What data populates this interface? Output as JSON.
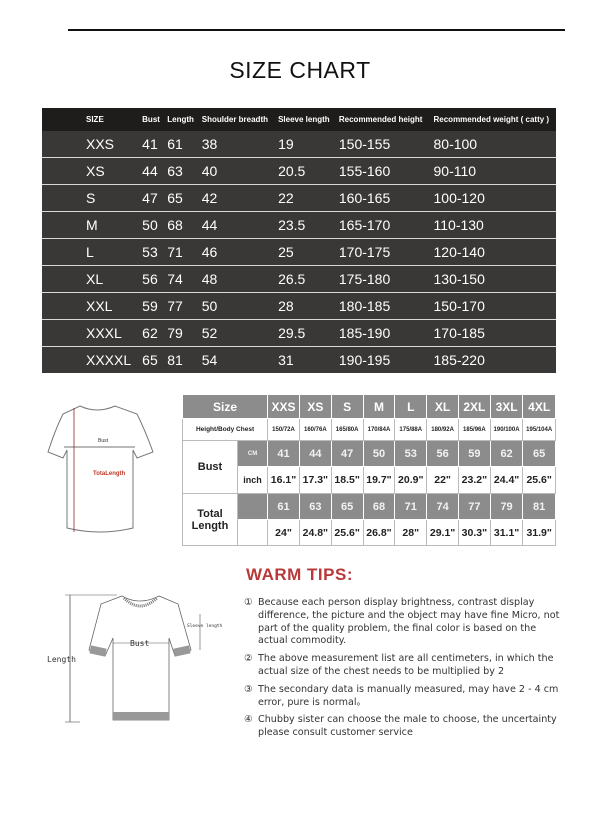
{
  "title": "SIZE CHART",
  "table1": {
    "headers": [
      "SIZE",
      "Bust",
      "Length",
      "Shoulder breadth",
      "Sleeve length",
      "Recommended height",
      "Recommended weight ( catty )"
    ],
    "rows": [
      [
        "XXS",
        "41",
        "61",
        "38",
        "19",
        "150-155",
        "80-100"
      ],
      [
        "XS",
        "44",
        "63",
        "40",
        "20.5",
        "155-160",
        "90-110"
      ],
      [
        "S",
        "47",
        "65",
        "42",
        "22",
        "160-165",
        "100-120"
      ],
      [
        "M",
        "50",
        "68",
        "44",
        "23.5",
        "165-170",
        "110-130"
      ],
      [
        "L",
        "53",
        "71",
        "46",
        "25",
        "170-175",
        "120-140"
      ],
      [
        "XL",
        "56",
        "74",
        "48",
        "26.5",
        "175-180",
        "130-150"
      ],
      [
        "XXL",
        "59",
        "77",
        "50",
        "28",
        "180-185",
        "150-170"
      ],
      [
        "XXXL",
        "62",
        "79",
        "52",
        "29.5",
        "185-190",
        "170-185"
      ],
      [
        "XXXXL",
        "65",
        "81",
        "54",
        "31",
        "190-195",
        "185-220"
      ]
    ]
  },
  "table2": {
    "size_label": "Size",
    "sizes": [
      "XXS",
      "XS",
      "S",
      "M",
      "L",
      "XL",
      "2XL",
      "3XL",
      "4XL"
    ],
    "height_label": "Height/Body Chest",
    "heights": [
      "150/72A",
      "160/76A",
      "165/80A",
      "170/84A",
      "175/88A",
      "180/92A",
      "185/96A",
      "190/100A",
      "195/104A"
    ],
    "height_unit": "CM",
    "bust_label": "Bust",
    "cm_label": "CM",
    "inch_label": "inch",
    "bust_cm": [
      "41",
      "44",
      "47",
      "50",
      "53",
      "56",
      "59",
      "62",
      "65"
    ],
    "bust_inch": [
      "16.1\"",
      "17.3\"",
      "18.5\"",
      "19.7\"",
      "20.9\"",
      "22\"",
      "23.2\"",
      "24.4\"",
      "25.6\""
    ],
    "length_label": "Total Length",
    "length_cm": [
      "61",
      "63",
      "65",
      "68",
      "71",
      "74",
      "77",
      "79",
      "81"
    ],
    "length_inch": [
      "24\"",
      "24.8\"",
      "25.6\"",
      "26.8\"",
      "28\"",
      "29.1\"",
      "30.3\"",
      "31.1\"",
      "31.9\""
    ]
  },
  "diagram1": {
    "bust": "Bust",
    "length": "TotaLength"
  },
  "diagram2": {
    "length": "Length",
    "bust": "Bust",
    "sleeve": "Sleeve length"
  },
  "warm_tips": {
    "heading": "WARM TIPS:",
    "items": [
      {
        "num": "①",
        "text": "Because each person display brightness, contrast display difference, the picture and the object may have fine Micro, not part of the quality problem, the final color is based on the actual commodity."
      },
      {
        "num": "②",
        "text": "The above measurement list are all centimeters, in which the actual size of the chest needs to be multiplied by 2"
      },
      {
        "num": "③",
        "text": "The secondary data is manually measured, may have 2 - 4 cm error, pure is normal。"
      },
      {
        "num": "④",
        "text": "Chubby sister can choose the male to choose, the uncertainty please consult customer service"
      }
    ]
  },
  "colors": {
    "dark_table": "#3a3836",
    "header": "#1f1d1c",
    "gray_cell": "#8c8c8c",
    "tips_red": "#b8393a"
  }
}
